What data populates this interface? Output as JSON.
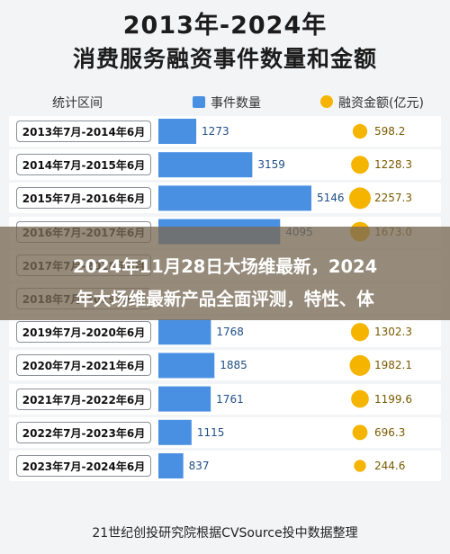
{
  "chart_data": {
    "type": "bar",
    "title": "2013年-2024年",
    "subtitle": "消费服务融资事件数量和金额",
    "headers": {
      "category": "统计区间",
      "count": "事件数量",
      "amount": "融资金额(亿元)"
    },
    "categories": [
      "2013年7月-2014年6月",
      "2014年7月-2015年6月",
      "2015年7月-2016年6月",
      "2016年7月-2017年6月",
      "2017年7月-2018年6月",
      "2018年7月-2019年6月",
      "2019年7月-2020年6月",
      "2020年7月-2021年6月",
      "2021年7月-2022年6月",
      "2022年7月-2023年6月",
      "2023年7月-2024年6月"
    ],
    "series": [
      {
        "name": "事件数量",
        "values": [
          1273,
          3159,
          5146,
          4095,
          null,
          null,
          1768,
          1885,
          1761,
          1115,
          837
        ]
      },
      {
        "name": "融资金额(亿元)",
        "values": [
          598.2,
          1228.3,
          2257.3,
          1673.0,
          null,
          null,
          1302.3,
          1982.1,
          1199.6,
          696.3,
          244.6
        ]
      }
    ],
    "count_labels": [
      "1273",
      "3159",
      "5146",
      "4095",
      "",
      "",
      "1768",
      "1885",
      "1761",
      "1115",
      "837"
    ],
    "amount_labels": [
      "598.2",
      "1228.3",
      "2257.3",
      "1673.0",
      "",
      "",
      "1302.3",
      "1982.1",
      "1199.6",
      "696.3",
      "244.6"
    ],
    "count_max": 5146,
    "amount_max": 2257.3,
    "colors": {
      "count": "#4a90e2",
      "amount": "#f4b400",
      "row": "#ffffff"
    },
    "grid": false,
    "legend": "top"
  },
  "overlay": {
    "line1": "2024年11月28日大场维最新，2024",
    "line2": "年大场维最新产品全面评测，特性、体"
  },
  "footer": "21世纪创投研究院根据CVSource投中数据整理"
}
